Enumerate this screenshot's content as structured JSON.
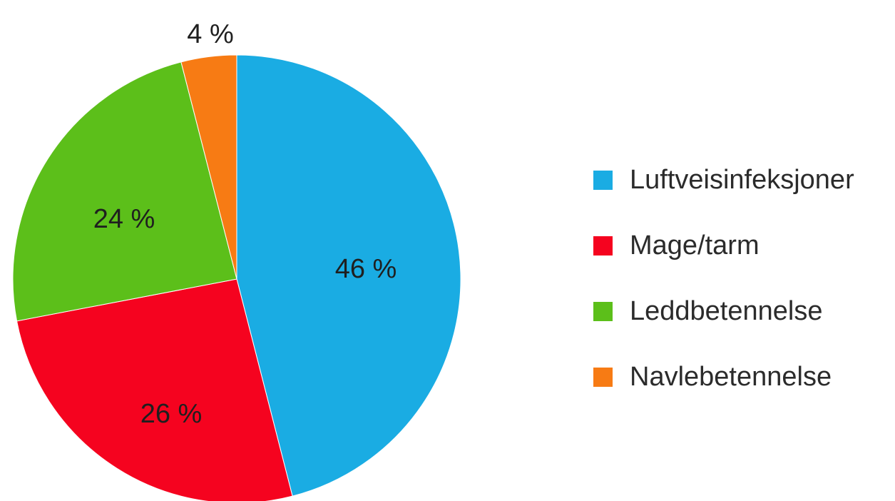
{
  "chart_data": {
    "type": "pie",
    "title": "",
    "categories": [
      "Luftveisinfeksjoner",
      "Mage/tarm",
      "Leddbetennelse",
      "Navlebetennelse"
    ],
    "values": [
      46,
      26,
      24,
      4
    ],
    "unit": "%",
    "data_labels": [
      "46 %",
      "26 %",
      "24 %",
      "4 %"
    ],
    "colors": [
      "#1aace3",
      "#f5031f",
      "#5cbf1a",
      "#f77b14"
    ],
    "start_angle_deg": 0,
    "direction": "clockwise",
    "legend": {
      "position": "right",
      "items": [
        "Luftveisinfeksjoner",
        "Mage/tarm",
        "Leddbetennelse",
        "Navlebetennelse"
      ]
    }
  }
}
